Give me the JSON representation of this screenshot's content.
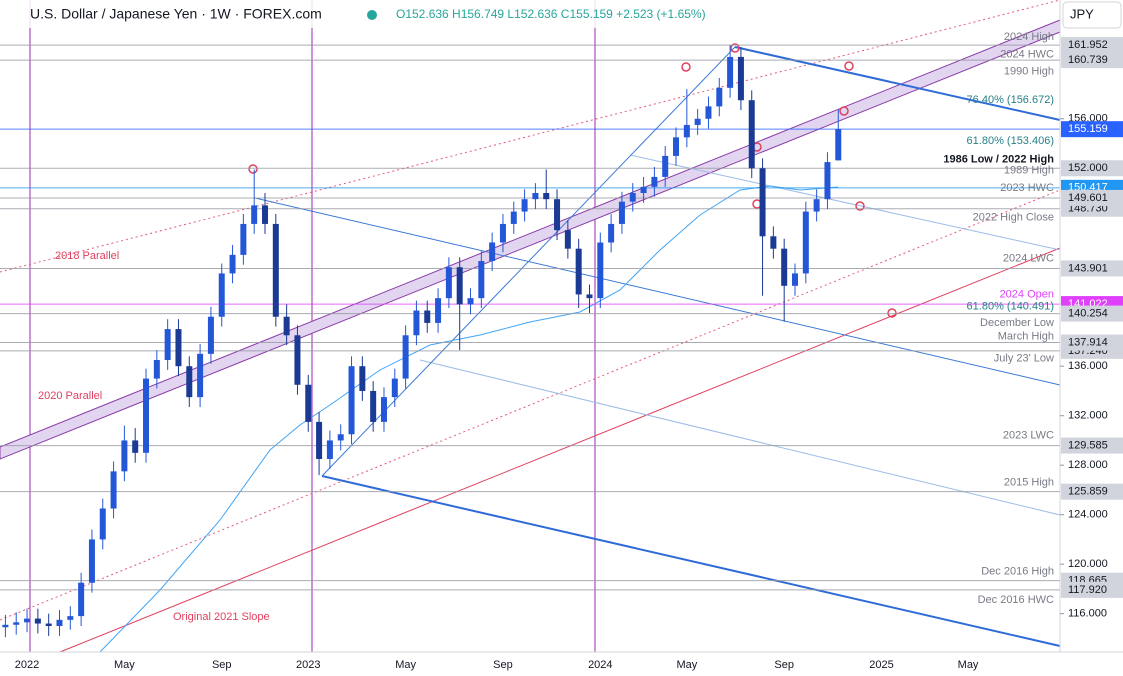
{
  "header": {
    "symbol": "U.S. Dollar / Japanese Yen · 1W · FOREX.com",
    "ohlc": "O152.636 H156.749 L152.636 C155.159 +2.523 (+1.65%)",
    "currency": "JPY"
  },
  "chart_data": {
    "type": "candlestick",
    "categories": [
      null,
      null,
      "2022",
      null,
      null,
      null,
      null,
      null,
      null,
      null,
      null,
      "May",
      null,
      null,
      null,
      null,
      null,
      null,
      null,
      null,
      "Sep",
      null,
      null,
      null,
      null,
      null,
      null,
      null,
      "2023",
      null,
      null,
      null,
      null,
      null,
      null,
      null,
      null,
      "May",
      null,
      null,
      null,
      null,
      null,
      null,
      null,
      null,
      "Sep",
      null,
      null,
      null,
      null,
      null,
      null,
      null,
      null,
      "2024",
      null,
      null,
      null,
      null,
      null,
      null,
      null,
      "May",
      null,
      null,
      null,
      null,
      null,
      null,
      null,
      null,
      "Sep",
      null,
      null,
      null,
      null,
      null,
      null,
      null,
      null,
      "2025",
      null,
      null,
      null,
      null,
      null,
      null,
      null,
      "May",
      null,
      null,
      null,
      null,
      null,
      null,
      null,
      null
    ],
    "open": [
      114.9,
      115.1,
      115.3,
      115.6,
      115.2,
      115.0,
      115.5,
      115.8,
      118.5,
      122.0,
      124.5,
      127.5,
      130.0,
      129.0,
      135.0,
      136.5,
      139.0,
      136.0,
      133.5,
      137.0,
      140.0,
      143.5,
      145.0,
      147.5,
      149.0,
      147.5,
      140.0,
      138.5,
      134.5,
      131.5,
      128.5,
      130.0,
      130.5,
      136.0,
      134.0,
      131.5,
      133.5,
      135.0,
      138.5,
      140.5,
      139.5,
      141.5,
      144.0,
      141.0,
      141.5,
      144.5,
      146.0,
      147.5,
      148.5,
      149.5,
      150.0,
      149.5,
      147.0,
      145.5,
      141.8,
      141.5,
      146.0,
      147.5,
      149.3,
      150.0,
      150.5,
      151.3,
      153.0,
      154.5,
      155.5,
      156.0,
      157.0,
      158.5,
      161.0,
      157.5,
      152.0,
      146.5,
      145.5,
      142.5,
      143.5,
      148.5,
      149.5,
      152.636,
      null,
      null,
      null,
      null,
      null,
      null,
      null,
      null,
      null,
      null,
      null,
      null,
      null,
      null,
      null,
      null,
      null,
      null,
      null,
      null
    ],
    "high": [
      115.9,
      116.1,
      116.4,
      116.4,
      116.0,
      116.3,
      116.6,
      119.3,
      122.8,
      125.3,
      128.3,
      131.2,
      131.0,
      135.8,
      137.3,
      139.8,
      139.8,
      136.8,
      137.8,
      140.8,
      144.3,
      145.8,
      148.3,
      151.9,
      150.0,
      148.3,
      141.0,
      139.3,
      135.3,
      132.3,
      130.8,
      131.3,
      136.8,
      136.8,
      134.8,
      134.3,
      135.8,
      139.3,
      141.3,
      141.3,
      142.3,
      144.8,
      144.8,
      142.3,
      145.3,
      146.8,
      148.3,
      149.3,
      150.3,
      150.8,
      151.9,
      150.3,
      147.8,
      146.3,
      142.6,
      146.8,
      148.3,
      150.1,
      150.8,
      151.3,
      152.1,
      153.8,
      155.3,
      158.4,
      156.8,
      157.8,
      159.3,
      161.95,
      161.8,
      158.3,
      152.8,
      147.3,
      146.3,
      144.3,
      149.3,
      150.3,
      153.3,
      156.749,
      null,
      null,
      null,
      null,
      null,
      null,
      null,
      null,
      null,
      null,
      null,
      null,
      null,
      null,
      null,
      null,
      null,
      null,
      null,
      null
    ],
    "low": [
      114.1,
      114.3,
      114.5,
      114.4,
      114.2,
      114.2,
      114.7,
      115.0,
      117.7,
      121.2,
      123.7,
      126.7,
      128.2,
      128.2,
      134.2,
      135.7,
      135.2,
      132.7,
      132.7,
      136.2,
      139.2,
      142.7,
      144.2,
      146.7,
      146.7,
      139.2,
      137.7,
      133.7,
      130.7,
      127.2,
      127.7,
      129.2,
      129.7,
      133.2,
      130.7,
      130.7,
      132.7,
      134.2,
      137.7,
      138.7,
      138.7,
      140.7,
      137.3,
      140.2,
      140.7,
      143.7,
      145.2,
      146.7,
      147.7,
      148.7,
      148.7,
      146.2,
      144.7,
      140.7,
      140.3,
      140.7,
      145.2,
      146.7,
      148.5,
      149.2,
      149.7,
      150.5,
      152.2,
      153.7,
      154.7,
      155.2,
      156.2,
      157.7,
      156.7,
      151.2,
      141.7,
      144.7,
      139.6,
      141.7,
      142.7,
      147.7,
      148.7,
      152.636,
      null,
      null,
      null,
      null,
      null,
      null,
      null,
      null,
      null,
      null,
      null,
      null,
      null,
      null,
      null,
      null,
      null,
      null,
      null,
      null
    ],
    "close": [
      115.1,
      115.3,
      115.6,
      115.2,
      115.0,
      115.5,
      115.8,
      118.5,
      122.0,
      124.5,
      127.5,
      130.0,
      129.0,
      135.0,
      136.5,
      139.0,
      136.0,
      133.5,
      137.0,
      140.0,
      143.5,
      145.0,
      147.5,
      149.0,
      147.5,
      140.0,
      138.5,
      134.5,
      131.5,
      128.5,
      130.0,
      130.5,
      136.0,
      134.0,
      131.5,
      133.5,
      135.0,
      138.5,
      140.5,
      139.5,
      141.5,
      144.0,
      141.0,
      141.5,
      144.5,
      146.0,
      147.5,
      148.5,
      149.5,
      150.0,
      149.5,
      147.0,
      145.5,
      141.8,
      141.5,
      146.0,
      147.5,
      149.3,
      150.0,
      150.5,
      151.3,
      153.0,
      154.5,
      155.5,
      156.0,
      157.0,
      158.5,
      161.0,
      157.5,
      152.0,
      146.5,
      145.5,
      142.5,
      143.5,
      148.5,
      149.5,
      152.5,
      155.159,
      null,
      null,
      null,
      null,
      null,
      null,
      null,
      null,
      null,
      null,
      null,
      null,
      null,
      null,
      null,
      null,
      null,
      null,
      null,
      null
    ],
    "up_color": "#2457d8",
    "down_color": "#1a3a94",
    "ylim": [
      112.9,
      165.6
    ],
    "yticks": [
      {
        "value": 116,
        "label": "116.000"
      },
      {
        "value": 120,
        "label": "120.000"
      },
      {
        "value": 124,
        "label": "124.000"
      },
      {
        "value": 128,
        "label": "128.000"
      },
      {
        "value": 132,
        "label": "132.000"
      },
      {
        "value": 136,
        "label": "136.000"
      },
      {
        "value": 156,
        "label": "156.000"
      }
    ],
    "price_tags": [
      {
        "value": 161.952,
        "label": "161.952",
        "color": "#d1d4dc"
      },
      {
        "value": 160.739,
        "label": "160.739",
        "color": "#d1d4dc"
      },
      {
        "value": 152,
        "label": "152.000",
        "color": "#d1d4dc"
      },
      {
        "value": 150.417,
        "label": "150.417",
        "color": "#2196f3"
      },
      {
        "value": 148.73,
        "label": "148.730",
        "color": "#d1d4dc"
      },
      {
        "value": 149.601,
        "label": "149.601",
        "color": "#d1d4dc"
      },
      {
        "value": 143.901,
        "label": "143.901",
        "color": "#d1d4dc"
      },
      {
        "value": 141.022,
        "label": "141.022",
        "color": "#e040fb"
      },
      {
        "value": 140.254,
        "label": "140.254",
        "color": "#d1d4dc"
      },
      {
        "value": 137.24,
        "label": "137.240",
        "color": "#d1d4dc"
      },
      {
        "value": 137.914,
        "label": "137.914",
        "color": "#d1d4dc"
      },
      {
        "value": 129.585,
        "label": "129.585",
        "color": "#d1d4dc"
      },
      {
        "value": 125.859,
        "label": "125.859",
        "color": "#d1d4dc"
      },
      {
        "value": 118.665,
        "label": "118.665",
        "color": "#d1d4dc"
      },
      {
        "value": 117.92,
        "label": "117.920",
        "color": "#d1d4dc"
      },
      {
        "value": 155.159,
        "label": "155.159",
        "color": "#2962ff"
      }
    ],
    "annotations": [
      {
        "text": "2024 High",
        "value": 162.6,
        "color": "#787b86"
      },
      {
        "text": "2024 HWC",
        "value": 161.2,
        "color": "#787b86"
      },
      {
        "text": "1990 High",
        "value": 159.8,
        "color": "#787b86"
      },
      {
        "text": "76.40% (156.672)",
        "value": 157.5,
        "color": "#26808a"
      },
      {
        "text": "61.80% (153.406)",
        "value": 154.2,
        "color": "#26808a"
      },
      {
        "text": "1986 Low / 2022 High",
        "value": 152.7,
        "color": "#131722"
      },
      {
        "text": "1989 High",
        "value": 151.8,
        "color": "#787b86"
      },
      {
        "text": "2023 HWC",
        "value": 150.4,
        "color": "#787b86"
      },
      {
        "text": "2022 High Close",
        "value": 148.0,
        "color": "#787b86"
      },
      {
        "text": "2024 LWC",
        "value": 144.7,
        "color": "#787b86"
      },
      {
        "text": "2024 Open",
        "value": 141.8,
        "color": "#e040fb"
      },
      {
        "text": "61.80% (140.491)",
        "value": 140.8,
        "color": "#26808a"
      },
      {
        "text": "December Low",
        "value": 139.5,
        "color": "#787b86"
      },
      {
        "text": "March High",
        "value": 138.4,
        "color": "#787b86"
      },
      {
        "text": "July 23' Low",
        "value": 136.6,
        "color": "#787b86"
      },
      {
        "text": "2023 LWC",
        "value": 130.4,
        "color": "#787b86"
      },
      {
        "text": "2015 High",
        "value": 126.6,
        "color": "#787b86"
      },
      {
        "text": "Dec 2016 High",
        "value": 119.4,
        "color": "#787b86"
      },
      {
        "text": "Dec 2016 HWC",
        "value": 117.1,
        "color": "#787b86"
      }
    ],
    "channel_labels": [
      "2018 Parallel",
      "2020 Parallel",
      "Original 2021 Slope"
    ]
  }
}
